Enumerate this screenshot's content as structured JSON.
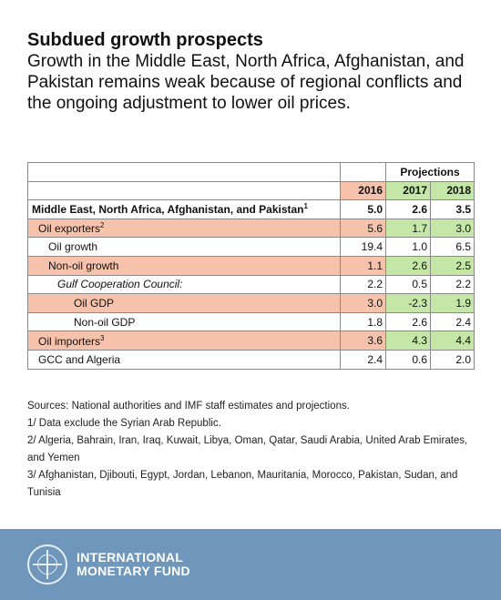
{
  "header": {
    "title": "Subdued growth prospects",
    "subtitle": "Growth in the Middle East, North Africa, Afghanistan, and Pakistan remains weak because of regional conflicts and the ongoing adjustment to lower oil prices."
  },
  "table": {
    "projections_label": "Projections",
    "years": [
      "2016",
      "2017",
      "2018"
    ],
    "rows": [
      {
        "label": "Middle East, North Africa, Afghanistan, and Pakistan",
        "sup": "1",
        "values": [
          "5.0",
          "2.6",
          "3.5"
        ]
      },
      {
        "label": "Oil exporters",
        "sup": "2",
        "values": [
          "5.6",
          "1.7",
          "3.0"
        ]
      },
      {
        "label": "Oil growth",
        "sup": "",
        "values": [
          "19.4",
          "1.0",
          "6.5"
        ]
      },
      {
        "label": "Non-oil growth",
        "sup": "",
        "values": [
          "1.1",
          "2.6",
          "2.5"
        ]
      },
      {
        "label": "Gulf Cooperation Council:",
        "sup": "",
        "values": [
          "2.2",
          "0.5",
          "2.2"
        ]
      },
      {
        "label": "Oil GDP",
        "sup": "",
        "values": [
          "3.0",
          "-2.3",
          "1.9"
        ]
      },
      {
        "label": "Non-oil GDP",
        "sup": "",
        "values": [
          "1.8",
          "2.6",
          "2.4"
        ]
      },
      {
        "label": "Oil importers",
        "sup": "3",
        "values": [
          "3.6",
          "4.3",
          "4.4"
        ]
      },
      {
        "label": "GCC and Algeria",
        "sup": "",
        "values": [
          "2.4",
          "0.6",
          "2.0"
        ]
      }
    ]
  },
  "notes": {
    "sources": "Sources: National authorities and IMF staff estimates and projections.",
    "note1": "1/ Data exclude the Syrian Arab Republic.",
    "note2": "2/ Algeria, Bahrain, Iran, Iraq, Kuwait, Libya, Oman, Qatar, Saudi Arabia, United Arab Emirates, and Yemen",
    "note3": "3/ Afghanistan, Djibouti, Egypt, Jordan, Lebanon, Mauritania, Morocco, Pakistan, Sudan, and Tunisia"
  },
  "footer": {
    "org_line1": "INTERNATIONAL",
    "org_line2": "MONETARY FUND",
    "logo_icon": "imf-seal-icon",
    "accent_color": "#6f97bc"
  }
}
